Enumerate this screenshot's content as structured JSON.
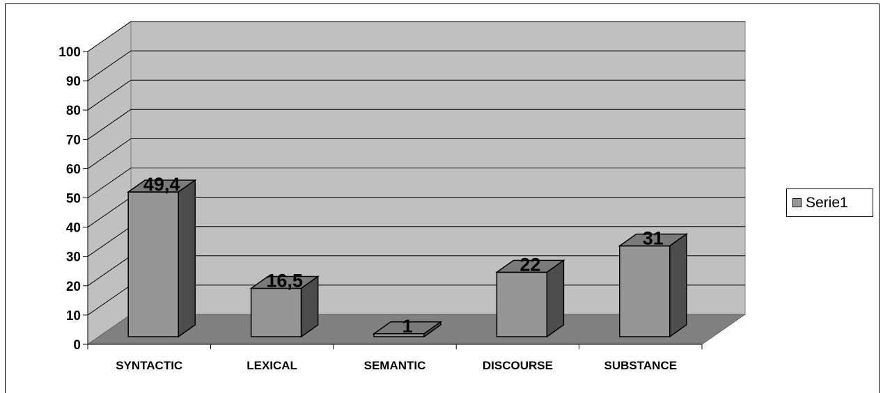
{
  "chart_data": {
    "type": "bar",
    "title": "",
    "xlabel": "",
    "ylabel": "",
    "categories": [
      "SYNTACTIC",
      "LEXICAL",
      "SEMANTIC",
      "DISCOURSE",
      "SUBSTANCE"
    ],
    "series": [
      {
        "name": "Serie1",
        "values": [
          49.4,
          16.5,
          1,
          22,
          31
        ],
        "value_labels": [
          "49,4",
          "16,5",
          "1",
          "22",
          "31"
        ]
      }
    ],
    "ylim": [
      0,
      100
    ],
    "yticks": [
      "0",
      "10",
      "20",
      "30",
      "40",
      "50",
      "60",
      "70",
      "80",
      "90",
      "100"
    ],
    "grid": true,
    "legend": "right",
    "style": "3d-column"
  },
  "colors": {
    "wall": "#c0c0c0",
    "floor": "#808080",
    "bar_front": "#969696",
    "bar_top": "#7a7a7a",
    "bar_side": "#4d4d4d",
    "legend_swatch": "#969696"
  }
}
